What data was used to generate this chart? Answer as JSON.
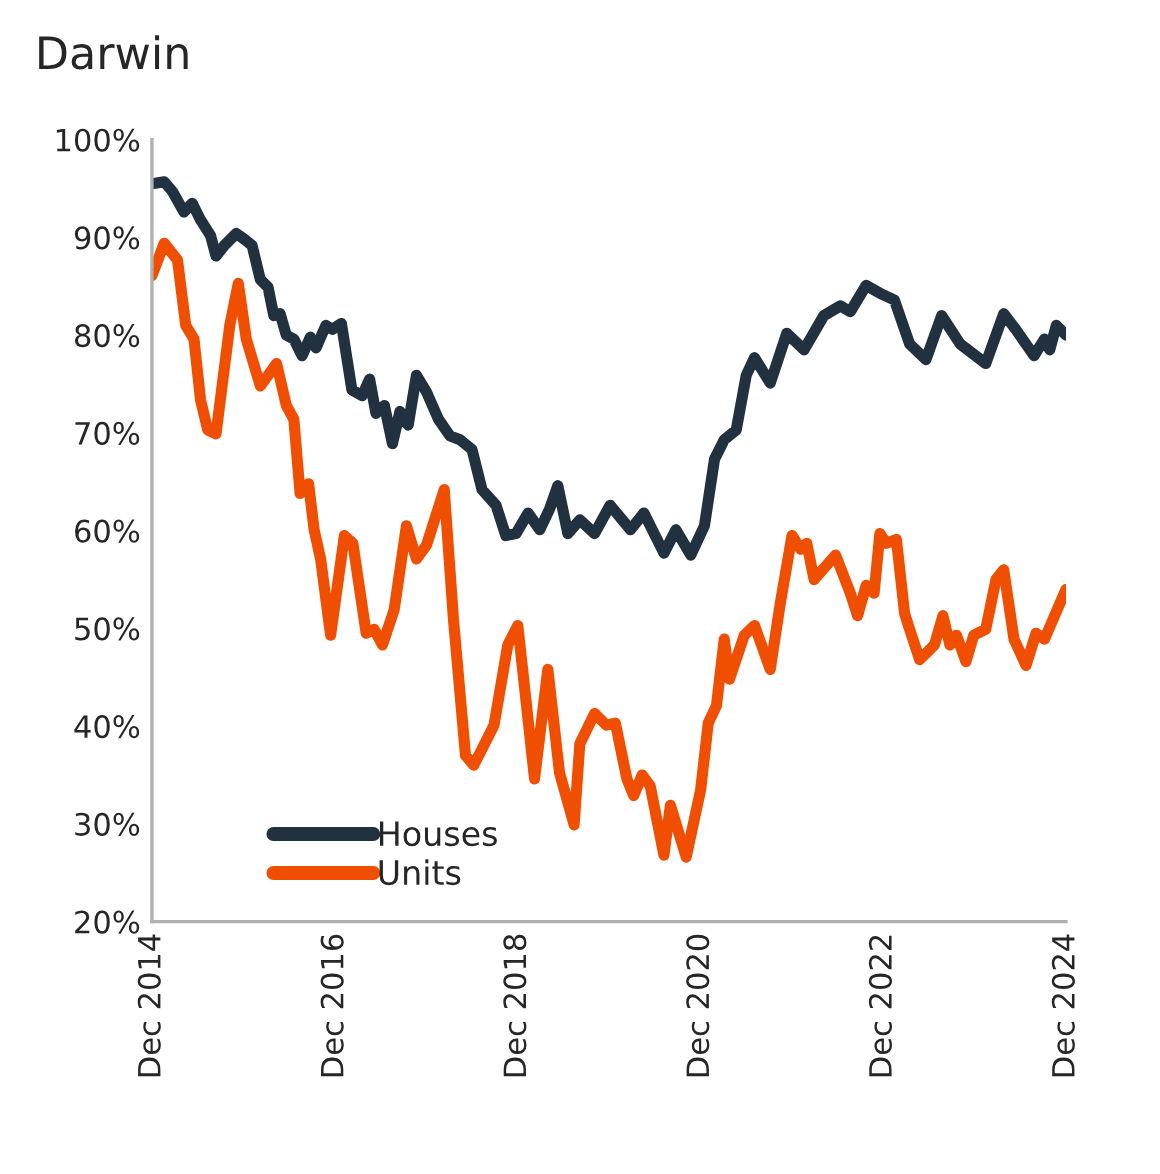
{
  "chart_data": {
    "type": "line",
    "title": "Darwin",
    "xlim": [
      "2014-12-01",
      "2024-12-01"
    ],
    "ylim": [
      20,
      100
    ],
    "xticks": [
      {
        "value": "2014-12-01",
        "label": "Dec 2014"
      },
      {
        "value": "2016-12-01",
        "label": "Dec 2016"
      },
      {
        "value": "2018-12-01",
        "label": "Dec 2018"
      },
      {
        "value": "2020-12-01",
        "label": "Dec 2020"
      },
      {
        "value": "2022-12-01",
        "label": "Dec 2022"
      },
      {
        "value": "2024-12-01",
        "label": "Dec 2024"
      }
    ],
    "yticks": [
      {
        "value": 20,
        "label": "20%"
      },
      {
        "value": 30,
        "label": "30%"
      },
      {
        "value": 40,
        "label": "40%"
      },
      {
        "value": 50,
        "label": "50%"
      },
      {
        "value": 60,
        "label": "60%"
      },
      {
        "value": 70,
        "label": "70%"
      },
      {
        "value": 80,
        "label": "80%"
      },
      {
        "value": 90,
        "label": "90%"
      },
      {
        "value": 100,
        "label": "100%"
      }
    ],
    "grid": false,
    "legend": "bottom left",
    "marker": "none",
    "line_style": "solid",
    "series": [
      {
        "name": "Houses",
        "color": "#22313f",
        "x": [
          "2014-12-01",
          "2015-01-19",
          "2015-02-21",
          "2015-04-08",
          "2015-05-11",
          "2015-06-13",
          "2015-07-23",
          "2015-08-14",
          "2015-09-17",
          "2015-11-03",
          "2015-12-06",
          "2016-01-05",
          "2016-02-07",
          "2016-03-09",
          "2016-04-01",
          "2016-04-26",
          "2016-05-21",
          "2016-06-20",
          "2016-07-23",
          "2016-08-25",
          "2016-09-17",
          "2016-10-26",
          "2016-11-21",
          "2016-12-27",
          "2017-02-07",
          "2017-03-20",
          "2017-04-19",
          "2017-05-14",
          "2017-06-17",
          "2017-07-19",
          "2017-08-18",
          "2017-09-20",
          "2017-10-23",
          "2017-12-02",
          "2018-01-19",
          "2018-03-06",
          "2018-04-15",
          "2018-06-02",
          "2018-07-12",
          "2018-09-06",
          "2018-10-15",
          "2018-11-25",
          "2019-01-12",
          "2019-02-28",
          "2019-04-08",
          "2019-05-11",
          "2019-06-20",
          "2019-08-07",
          "2019-10-05",
          "2019-12-06",
          "2020-02-25",
          "2020-04-19",
          "2020-07-08",
          "2020-08-25",
          "2020-10-23",
          "2020-12-17",
          "2021-01-26",
          "2021-03-06",
          "2021-04-23",
          "2021-06-02",
          "2021-07-05",
          "2021-09-06",
          "2021-11-11",
          "2022-01-19",
          "2022-04-08",
          "2022-06-13",
          "2022-07-23",
          "2022-09-24",
          "2022-11-18",
          "2023-01-15",
          "2023-03-17",
          "2023-05-21",
          "2023-07-23",
          "2023-10-05",
          "2024-01-15",
          "2024-03-27",
          "2024-05-14",
          "2024-07-26",
          "2024-09-06",
          "2024-09-27",
          "2024-10-23",
          "2024-12-01"
        ],
        "values": [
          95.5,
          95.7,
          94.7,
          92.6,
          93.5,
          91.8,
          90.2,
          88.1,
          89.2,
          90.4,
          89.8,
          89.2,
          85.7,
          84.9,
          82,
          82.2,
          80,
          79.6,
          77.9,
          79.8,
          78.7,
          81,
          80.6,
          81.2,
          74.4,
          73.8,
          75.5,
          72,
          72.8,
          68.9,
          72.2,
          70.8,
          75.9,
          74.2,
          71.4,
          69.7,
          69.3,
          68.3,
          64.2,
          62.6,
          59.5,
          59.7,
          61.8,
          60.1,
          62.2,
          64.6,
          59.7,
          61.1,
          59.7,
          62.6,
          60.1,
          61.8,
          57.7,
          60.1,
          57.5,
          60.5,
          67.3,
          69.3,
          70.3,
          75.9,
          77.7,
          75.1,
          80.2,
          78.5,
          82,
          83,
          82.4,
          85.1,
          84.3,
          83.6,
          79.1,
          77.5,
          82,
          79.1,
          77.1,
          82.2,
          80.6,
          77.9,
          79.6,
          78.5,
          81,
          80
        ]
      },
      {
        "name": "Units",
        "color": "#f04e00",
        "x": [
          "2014-12-01",
          "2015-01-19",
          "2015-03-13",
          "2015-04-15",
          "2015-05-18",
          "2015-06-13",
          "2015-07-12",
          "2015-08-14",
          "2015-10-08",
          "2015-11-11",
          "2015-12-13",
          "2016-02-07",
          "2016-04-12",
          "2016-05-21",
          "2016-06-20",
          "2016-07-15",
          "2016-08-18",
          "2016-09-09",
          "2016-10-05",
          "2016-11-14",
          "2017-01-08",
          "2017-02-11",
          "2017-04-05",
          "2017-05-07",
          "2017-06-09",
          "2017-07-26",
          "2017-09-13",
          "2017-10-23",
          "2017-12-02",
          "2018-02-11",
          "2018-03-20",
          "2018-05-07",
          "2018-06-09",
          "2018-08-29",
          "2018-10-23",
          "2018-12-02",
          "2019-02-07",
          "2019-04-01",
          "2019-05-18",
          "2019-07-15",
          "2019-08-07",
          "2019-10-05",
          "2019-11-21",
          "2019-12-27",
          "2020-02-11",
          "2020-03-09",
          "2020-04-12",
          "2020-05-14",
          "2020-07-08",
          "2020-08-03",
          "2020-10-05",
          "2020-12-02",
          "2021-01-01",
          "2021-02-03",
          "2021-03-06",
          "2021-03-27",
          "2021-05-25",
          "2021-07-05",
          "2021-09-06",
          "2021-10-15",
          "2021-12-02",
          "2022-01-05",
          "2022-01-30",
          "2022-02-28",
          "2022-05-25",
          "2022-07-23",
          "2022-08-21",
          "2022-09-24",
          "2022-10-26",
          "2022-11-18",
          "2022-12-13",
          "2023-01-23",
          "2023-02-25",
          "2023-03-17",
          "2023-04-26",
          "2023-06-24",
          "2023-07-28",
          "2023-08-25",
          "2023-09-20",
          "2023-10-28",
          "2023-11-28",
          "2024-01-15",
          "2024-02-25",
          "2024-03-27",
          "2024-05-07",
          "2024-06-24",
          "2024-08-03",
          "2024-09-06",
          "2024-12-01"
        ],
        "values": [
          86.1,
          89.4,
          87.7,
          81,
          79.6,
          73.4,
          70.3,
          69.9,
          81,
          85.3,
          79.6,
          74.8,
          77.1,
          72.8,
          71.4,
          63.8,
          64.8,
          60.1,
          57.1,
          49.3,
          59.5,
          58.7,
          49.5,
          49.9,
          48.3,
          51.9,
          60.5,
          57.1,
          58.5,
          64.2,
          50.9,
          37,
          36,
          40.1,
          48.3,
          50.3,
          34.6,
          45.8,
          35.2,
          29.9,
          38.2,
          41.3,
          40.1,
          40.3,
          34.6,
          32.9,
          35,
          33.9,
          26.8,
          31.9,
          26.6,
          33.5,
          40.3,
          42.1,
          48.9,
          44.8,
          49.3,
          50.3,
          45.8,
          52.4,
          59.5,
          58.1,
          58.7,
          55,
          57.5,
          53.6,
          51.3,
          54.4,
          53.6,
          59.7,
          58.7,
          59.1,
          51.5,
          49.9,
          46.8,
          48.3,
          51.3,
          48.3,
          49.3,
          46.6,
          49.3,
          49.9,
          55,
          56,
          48.9,
          46.2,
          49.5,
          48.9,
          54
        ]
      }
    ]
  }
}
